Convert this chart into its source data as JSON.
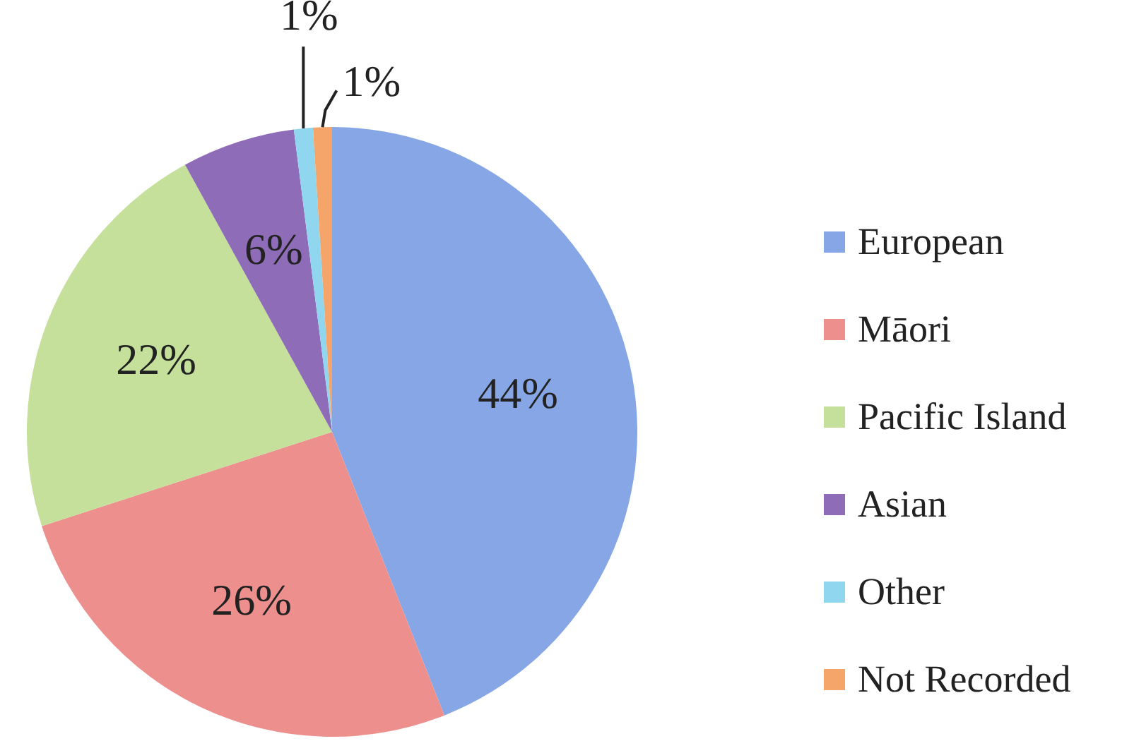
{
  "chart_data": {
    "type": "pie",
    "categories": [
      "European",
      "Māori",
      "Pacific Island",
      "Asian",
      "Other",
      "Not Recorded"
    ],
    "values": [
      44,
      26,
      22,
      6,
      1,
      1
    ],
    "colors": [
      "#86a6e6",
      "#ec8f8d",
      "#c4e09a",
      "#8e6cb8",
      "#8fd6ee",
      "#f6a56a"
    ],
    "value_labels": [
      "44%",
      "26%",
      "22%",
      "6%",
      "1%",
      "1%"
    ],
    "legend": "right"
  }
}
